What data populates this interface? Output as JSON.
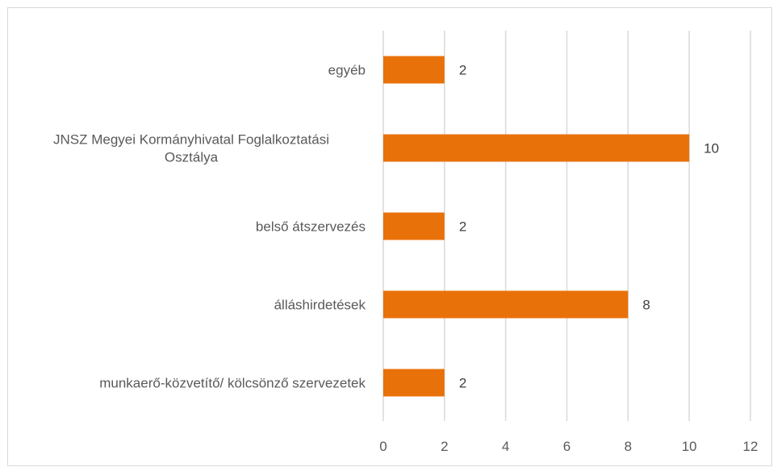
{
  "chart_data": {
    "type": "bar",
    "orientation": "horizontal",
    "title": "",
    "xlabel": "",
    "ylabel": "",
    "categories": [
      [
        "egyéb"
      ],
      [
        "JNSZ Megyei Kormányhivatal Foglalkoztatási",
        "Osztálya"
      ],
      [
        "belső átszervezés"
      ],
      [
        "álláshirdetések"
      ],
      [
        "munkaerő-közvetítő/ kölcsönző szervezetek"
      ]
    ],
    "values": [
      2,
      10,
      2,
      8,
      2
    ],
    "xlim": [
      0,
      12
    ],
    "ticks": [
      0,
      2,
      4,
      6,
      8,
      10,
      12
    ],
    "gridlines": "vertical",
    "legend": "none",
    "bar_color": "#E97109",
    "grid_color": "#d9d9d9",
    "text_color": "#595959"
  }
}
